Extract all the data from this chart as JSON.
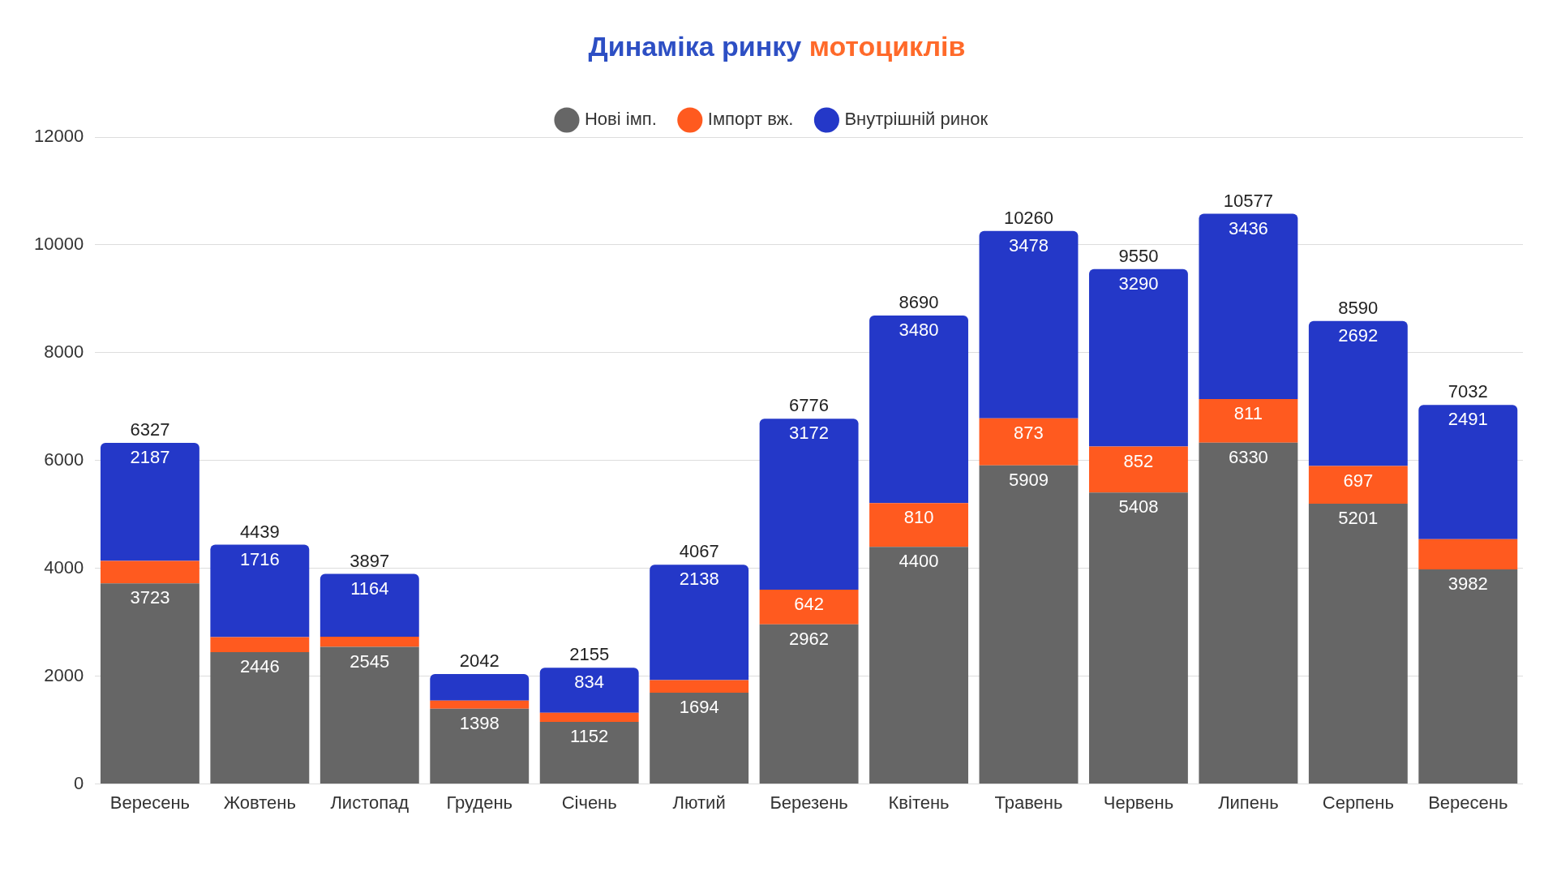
{
  "chart_data": {
    "type": "bar",
    "title": "Динаміка ринку мотоциклів",
    "categories": [
      "Вересень",
      "Жовтень",
      "Листопад",
      "Грудень",
      "Січень",
      "Лютий",
      "Березень",
      "Квітень",
      "Травень",
      "Червень",
      "Липень",
      "Серпень",
      "Вересень"
    ],
    "series": [
      {
        "name": "Нові імп.",
        "color": "#666666",
        "values": [
          3723,
          2446,
          2545,
          1398,
          1152,
          1694,
          2962,
          4400,
          5909,
          5408,
          6330,
          5201,
          3982
        ],
        "value_labels": [
          "3723",
          "2446",
          "2545",
          "1398",
          "1152",
          "1694",
          "2962",
          "4400",
          "5909",
          "5408",
          "6330",
          "5201",
          "3982"
        ]
      },
      {
        "name": "Імпорт вж.",
        "color": "#ff5a1f",
        "values": [
          417,
          277,
          188,
          150,
          169,
          235,
          642,
          810,
          873,
          852,
          811,
          697,
          559
        ],
        "value_labels": [
          null,
          null,
          null,
          null,
          null,
          null,
          "642",
          "810",
          "873",
          "852",
          "811",
          "697",
          null
        ]
      },
      {
        "name": "Внутрішній ринок",
        "color": "#2438c8",
        "values": [
          2187,
          1716,
          1164,
          494,
          834,
          2138,
          3172,
          3480,
          3478,
          3290,
          3436,
          2692,
          2491
        ],
        "value_labels": [
          "2187",
          "1716",
          "1164",
          null,
          "834",
          "2138",
          "3172",
          "3480",
          "3478",
          "3290",
          "3436",
          "2692",
          "2491"
        ]
      }
    ],
    "totals": [
      "6327",
      "4439",
      "3897",
      "2042",
      "2155",
      "4067",
      "6776",
      "8690",
      "10260",
      "9550",
      "10577",
      "8590",
      "7032"
    ],
    "stacked": true,
    "ylim": [
      0,
      12000
    ],
    "yticks": [
      0,
      2000,
      4000,
      6000,
      8000,
      10000,
      12000
    ],
    "grid": "y",
    "legend": "top",
    "marker": "circle"
  }
}
